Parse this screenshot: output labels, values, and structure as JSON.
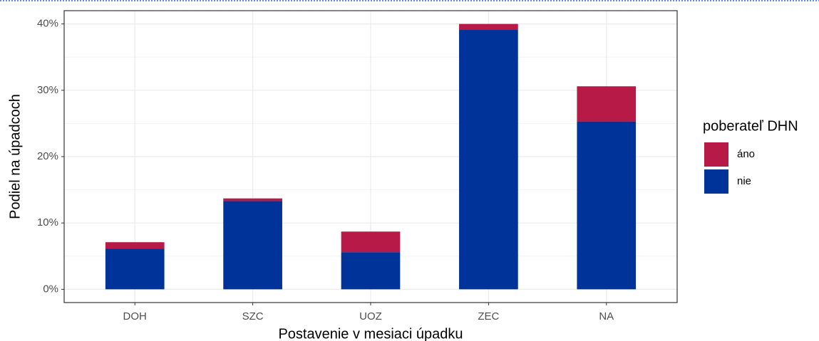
{
  "chart_data": {
    "type": "stacked-bar",
    "x_label": "Postavenie v mesiaci úpadku",
    "y_label": "Podiel na úpadcoch",
    "legend_title": "poberateľ DHN",
    "legend": "right",
    "grid": true,
    "categories": [
      "DOH",
      "SZC",
      "UOZ",
      "ZEC",
      "NA"
    ],
    "series": [
      {
        "name": "áno",
        "color": "#b81a48",
        "values": [
          1.0,
          0.4,
          3.1,
          0.9,
          5.3
        ]
      },
      {
        "name": "nie",
        "color": "#00339a",
        "values": [
          6.1,
          13.3,
          5.6,
          39.1,
          25.3
        ]
      }
    ],
    "ylim": [
      -2,
      42
    ],
    "yticks": [
      {
        "value": 0,
        "label": "0%"
      },
      {
        "value": 10,
        "label": "10%"
      },
      {
        "value": 20,
        "label": "20%"
      },
      {
        "value": 30,
        "label": "30%"
      },
      {
        "value": 40,
        "label": "40%"
      }
    ]
  }
}
